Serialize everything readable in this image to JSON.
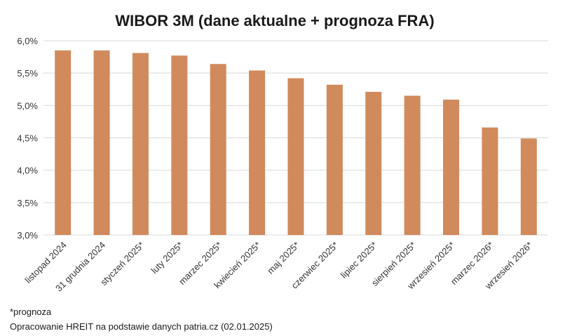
{
  "chart_data": {
    "type": "bar",
    "title": "WIBOR 3M (dane aktualne + prognoza FRA)",
    "categories": [
      "listopad 2024",
      "31 grudnia 2024",
      "styczeń 2025*",
      "luty 2025*",
      "marzec 2025*",
      "kwiecień 2025*",
      "maj 2025*",
      "czerwiec 2025*",
      "lipiec 2025*",
      "sierpień 2025*",
      "wrzesień 2025*",
      "marzec 2026*",
      "wrzesień 2026*"
    ],
    "values": [
      5.85,
      5.85,
      5.81,
      5.77,
      5.64,
      5.54,
      5.42,
      5.32,
      5.21,
      5.15,
      5.09,
      4.66,
      4.49
    ],
    "ylim": [
      3.0,
      6.0
    ],
    "yticks": [
      3.0,
      3.5,
      4.0,
      4.5,
      5.0,
      5.5,
      6.0
    ],
    "ytick_labels": [
      "3,0%",
      "3,5%",
      "4,0%",
      "4,5%",
      "5,0%",
      "5,5%",
      "6,0%"
    ],
    "xlabel": "",
    "ylabel": "",
    "grid": true,
    "legend": "none",
    "bar_color": "#D08A5C",
    "grid_color": "#D9D9D9"
  },
  "notes": {
    "footnote": "*prognoza",
    "source": "Opracowanie HREIT na podstawie danych patria.cz (02.01.2025)"
  }
}
